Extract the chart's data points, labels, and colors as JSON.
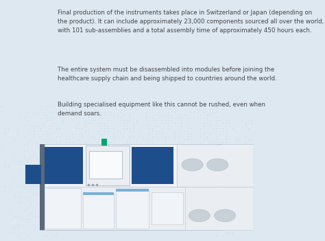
{
  "bg_color": "#dde8f1",
  "text_color": "#444444",
  "text1": "Final production of the instruments takes place in Switzerland or Japan (depending on\nthe product). It can include approximately 23,000 components sourced all over the world,\nwith 101 sub-assemblies and a total assembly time of approximately 450 hours each.",
  "text2": "The entire system must be disassembled into modules before joining the\nhealthcare supply chain and being shipped to countries around the world.",
  "text3": "Building specialised equipment like this cannot be rushed, even when\ndemand soars.",
  "machine_color": "#eaeef3",
  "machine_color2": "#f0f3f7",
  "machine_border": "#b8c4d0",
  "machine_border_dark": "#5a6a7a",
  "blue_color": "#1e4d8c",
  "green_color": "#00a86b",
  "gray_vents": "#c8d0d8",
  "dot_color": "#b8cfdf",
  "stripe_blue": "#7ab0d8"
}
